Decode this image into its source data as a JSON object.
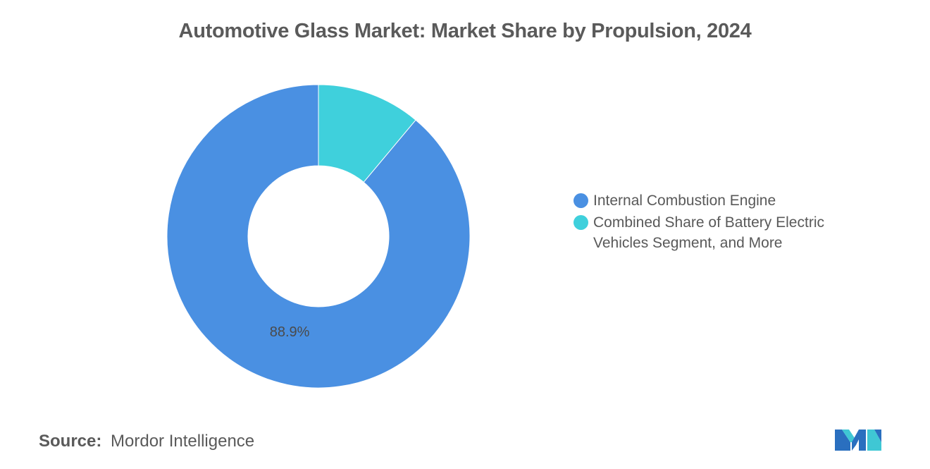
{
  "chart_data": {
    "type": "pie",
    "title": "Automotive Glass Market: Market Share by Propulsion, 2024",
    "series": [
      {
        "name": "Internal Combustion Engine",
        "value": 88.9,
        "label": "88.9%",
        "color": "#4a90e2"
      },
      {
        "name": "Combined Share of Battery Electric Vehicles Segment, and More",
        "value": 11.1,
        "label": "",
        "color": "#3fd0dc"
      }
    ],
    "donut": true,
    "legend_position": "right"
  },
  "source": {
    "label": "Source:",
    "value": "Mordor Intelligence"
  },
  "logo": {
    "icon": "mordor-intelligence-logo-icon",
    "colors": [
      "#2a6fbf",
      "#3fc7d4"
    ]
  }
}
